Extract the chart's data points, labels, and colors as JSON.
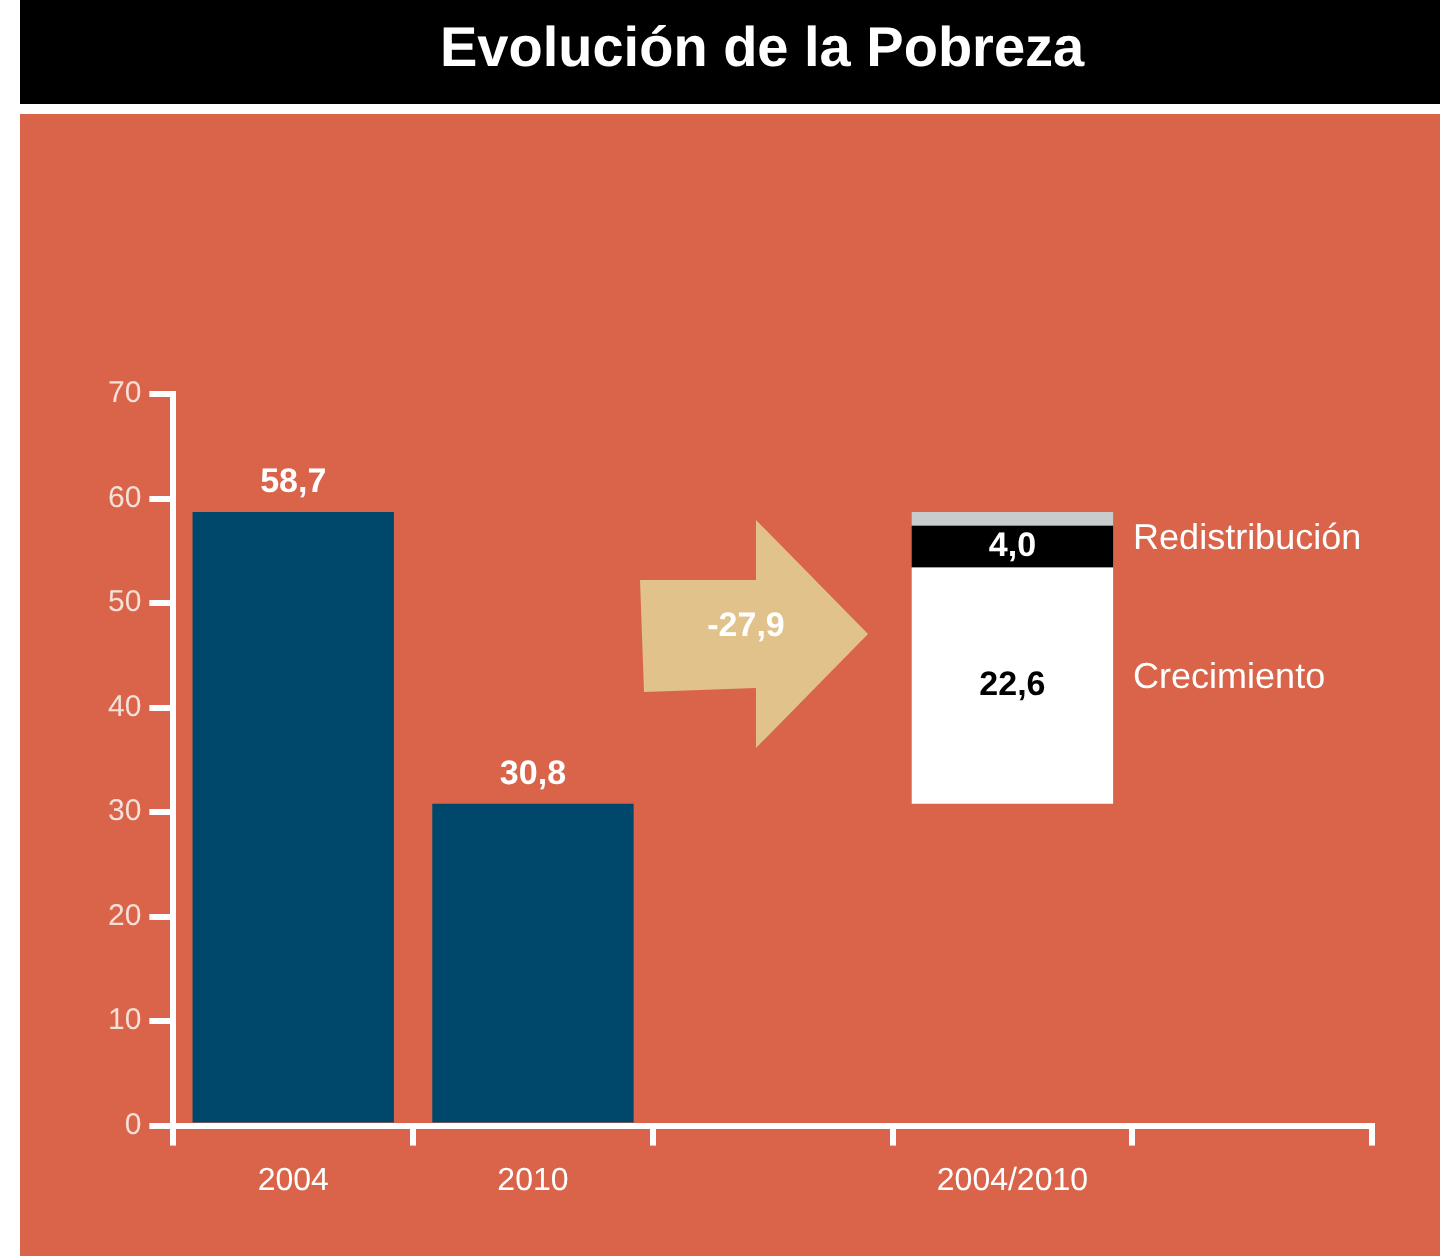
{
  "chart_data": {
    "type": "bar",
    "title": "Evolución de la Pobreza",
    "categories": [
      "2004",
      "2010",
      null,
      "2004/2010",
      null
    ],
    "stacked": true,
    "series": [
      {
        "color": "#00486b",
        "values": [
          58.7,
          30.8,
          null,
          null,
          null
        ],
        "value_labels": [
          "58,7",
          "30,8",
          null,
          null,
          null
        ]
      },
      {
        "name": "Crecimiento",
        "color": "#ffffff",
        "base": [
          null,
          null,
          null,
          30.8,
          null
        ],
        "values": [
          null,
          null,
          null,
          22.6,
          null
        ],
        "value_labels": [
          null,
          null,
          null,
          "22,6",
          null
        ]
      },
      {
        "name": "Redistribución",
        "color": "#000000",
        "values": [
          null,
          null,
          null,
          4.0,
          null
        ],
        "value_labels": [
          null,
          null,
          null,
          "4,0",
          null
        ]
      },
      {
        "color": "#c8cccc",
        "values": [
          null,
          null,
          null,
          1.3,
          null
        ]
      }
    ],
    "annotations": [
      "-27,9"
    ],
    "ylim": [
      0,
      70
    ],
    "yticks": [
      0,
      10,
      20,
      30,
      40,
      50,
      60,
      70
    ],
    "grid": false,
    "legend": false
  }
}
